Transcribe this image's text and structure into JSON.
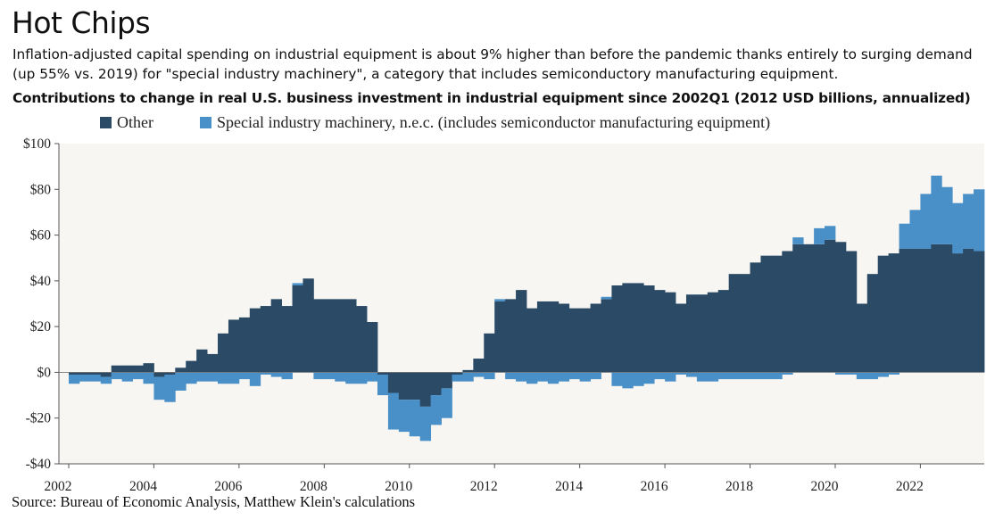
{
  "header": {
    "title": "Hot Chips",
    "subtitle": "Inflation-adjusted capital spending on industrial equipment is about 9% higher than before the pandemic thanks entirely to surging demand (up 55% vs. 2019) for \"special industry machinery\", a category that includes semiconductory manufacturing equipment.",
    "chart_title": "Contributions to change in real U.S. business investment in industrial equipment since 2002Q1 (2012 USD billions, annualized)"
  },
  "source": "Source: Bureau of Economic Analysis, Matthew Klein's calculations",
  "colors": {
    "other": "#2a4a66",
    "special": "#4a90c8",
    "plot_bg": "#f8f6f2",
    "axis": "#555555"
  },
  "chart_data": {
    "type": "bar",
    "stacked": true,
    "frequency": "quarterly",
    "start": "2002Q1",
    "x_tick_labels": [
      "2002",
      "2004",
      "2006",
      "2008",
      "2010",
      "2012",
      "2014",
      "2016",
      "2018",
      "2020",
      "2022"
    ],
    "y_tick_labels": [
      "-$40",
      "-$20",
      "$0",
      "$20",
      "$40",
      "$60",
      "$80",
      "$100"
    ],
    "ylim": [
      -40,
      100
    ],
    "y_ticks": [
      -40,
      -20,
      0,
      20,
      40,
      60,
      80,
      100
    ],
    "legend_position": "top",
    "series": [
      {
        "name": "Other",
        "color_key": "other",
        "values": [
          -1,
          -1,
          -1,
          -2,
          3,
          3,
          3,
          4,
          -2,
          -1,
          2,
          5,
          10,
          8,
          17,
          23,
          24,
          28,
          29,
          32,
          29,
          38,
          41,
          32,
          32,
          32,
          32,
          29,
          22,
          -1,
          -9,
          -12,
          -12,
          -15,
          -10,
          -7,
          -1,
          1,
          6,
          17,
          31,
          32,
          36,
          28,
          31,
          31,
          30,
          28,
          28,
          30,
          32,
          38,
          39,
          39,
          38,
          36,
          35,
          30,
          34,
          34,
          35,
          36,
          43,
          43,
          48,
          51,
          51,
          53,
          56,
          56,
          56,
          58,
          57,
          53,
          30,
          43,
          51,
          52,
          54,
          54,
          54,
          56,
          56,
          52,
          54,
          53
        ]
      },
      {
        "name": "Special industry machinery, n.e.c. (includes semiconductor manufacturing equipment)",
        "color_key": "special",
        "values": [
          -4,
          -3,
          -3,
          -3,
          -3,
          -4,
          -3,
          -5,
          -10,
          -12,
          -8,
          -5,
          -4,
          -4,
          -5,
          -5,
          -3,
          -6,
          -1,
          -2,
          -3,
          1,
          0,
          -3,
          -3,
          -4,
          -5,
          -5,
          -4,
          -9,
          -16,
          -14,
          -16,
          -15,
          -13,
          -13,
          -3,
          -4,
          -2,
          -3,
          1,
          -3,
          -4,
          -5,
          -4,
          -5,
          -4,
          -3,
          -4,
          -3,
          1,
          -6,
          -7,
          -6,
          -5,
          -3,
          -4,
          -1,
          -2,
          -4,
          -4,
          -3,
          -3,
          -3,
          -3,
          -3,
          -3,
          -1,
          3,
          0,
          7,
          6,
          -1,
          -1,
          -3,
          -3,
          -2,
          -1,
          11,
          17,
          24,
          30,
          25,
          22,
          24,
          27
        ]
      }
    ]
  }
}
